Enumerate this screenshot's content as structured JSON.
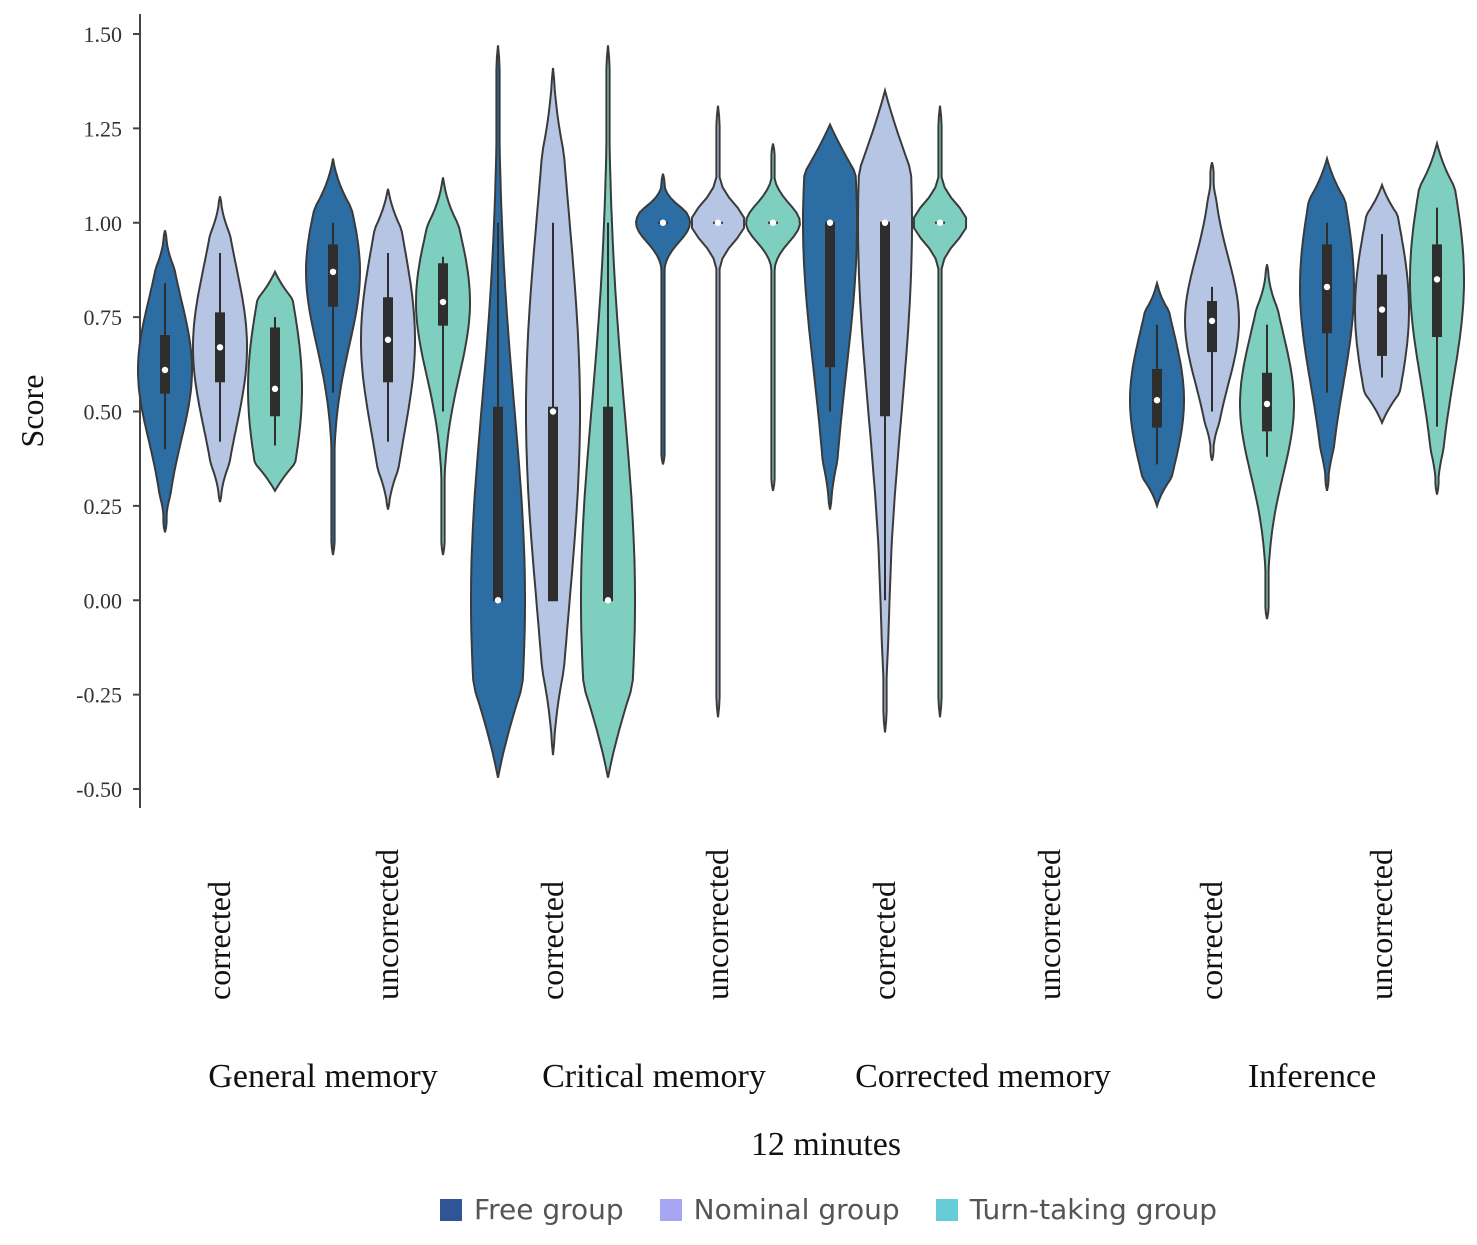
{
  "chart_data": {
    "type": "violin",
    "xlabel": "12 minutes",
    "ylabel": "Score",
    "ylim": [
      -0.5,
      1.5
    ],
    "yticks": [
      "1.50",
      "1.25",
      "1.00",
      "0.75",
      "0.50",
      "0.25",
      "0.00",
      "-0.25",
      "-0.50"
    ],
    "ytick_values": [
      1.5,
      1.25,
      1.0,
      0.75,
      0.5,
      0.25,
      0.0,
      -0.25,
      -0.5
    ],
    "groups": [
      "General memory",
      "Critical memory",
      "Corrected memory",
      "Inference"
    ],
    "subcategories": [
      "corrected",
      "uncorrected"
    ],
    "series": [
      {
        "name": "Free group",
        "color": "#2c6ea3"
      },
      {
        "name": "Nominal group",
        "color": "#b5c5e3"
      },
      {
        "name": "Turn-taking group",
        "color": "#7fcfc0"
      }
    ],
    "violins": [
      {
        "group": "General memory",
        "condition": "corrected",
        "series": "Free group",
        "min": 0.18,
        "max": 0.98,
        "q1": 0.55,
        "median": 0.61,
        "q3": 0.7,
        "whisker_low": 0.4,
        "whisker_high": 0.84
      },
      {
        "group": "General memory",
        "condition": "corrected",
        "series": "Nominal group",
        "min": 0.26,
        "max": 1.07,
        "q1": 0.58,
        "median": 0.67,
        "q3": 0.76,
        "whisker_low": 0.42,
        "whisker_high": 0.92
      },
      {
        "group": "General memory",
        "condition": "corrected",
        "series": "Turn-taking group",
        "min": 0.29,
        "max": 0.87,
        "q1": 0.49,
        "median": 0.56,
        "q3": 0.72,
        "whisker_low": 0.41,
        "whisker_high": 0.75
      },
      {
        "group": "General memory",
        "condition": "uncorrected",
        "series": "Free group",
        "min": 0.12,
        "max": 1.17,
        "q1": 0.78,
        "median": 0.87,
        "q3": 0.94,
        "whisker_low": 0.55,
        "whisker_high": 1.0
      },
      {
        "group": "General memory",
        "condition": "uncorrected",
        "series": "Nominal group",
        "min": 0.24,
        "max": 1.09,
        "q1": 0.58,
        "median": 0.69,
        "q3": 0.8,
        "whisker_low": 0.42,
        "whisker_high": 0.92
      },
      {
        "group": "General memory",
        "condition": "uncorrected",
        "series": "Turn-taking group",
        "min": 0.12,
        "max": 1.12,
        "q1": 0.73,
        "median": 0.79,
        "q3": 0.89,
        "whisker_low": 0.5,
        "whisker_high": 0.91
      },
      {
        "group": "Critical memory",
        "condition": "corrected",
        "series": "Free group",
        "min": -0.47,
        "max": 1.47,
        "q1": 0.0,
        "median": 0.0,
        "q3": 0.51,
        "whisker_low": 0.0,
        "whisker_high": 1.0
      },
      {
        "group": "Critical memory",
        "condition": "corrected",
        "series": "Nominal group",
        "min": -0.41,
        "max": 1.41,
        "q1": 0.0,
        "median": 0.5,
        "q3": 0.51,
        "whisker_low": 0.0,
        "whisker_high": 1.0
      },
      {
        "group": "Critical memory",
        "condition": "corrected",
        "series": "Turn-taking group",
        "min": -0.47,
        "max": 1.47,
        "q1": 0.0,
        "median": 0.0,
        "q3": 0.51,
        "whisker_low": 0.0,
        "whisker_high": 1.0
      },
      {
        "group": "Critical memory",
        "condition": "uncorrected",
        "series": "Free group",
        "min": 0.36,
        "max": 1.13,
        "q1": 1.0,
        "median": 1.0,
        "q3": 1.0,
        "whisker_low": 1.0,
        "whisker_high": 1.0
      },
      {
        "group": "Critical memory",
        "condition": "uncorrected",
        "series": "Nominal group",
        "min": -0.31,
        "max": 1.31,
        "q1": 1.0,
        "median": 1.0,
        "q3": 1.0,
        "whisker_low": 1.0,
        "whisker_high": 1.0
      },
      {
        "group": "Critical memory",
        "condition": "uncorrected",
        "series": "Turn-taking group",
        "min": 0.29,
        "max": 1.21,
        "q1": 1.0,
        "median": 1.0,
        "q3": 1.0,
        "whisker_low": 1.0,
        "whisker_high": 1.0
      },
      {
        "group": "Corrected memory",
        "condition": "corrected",
        "series": "Free group",
        "min": 0.24,
        "max": 1.26,
        "q1": 0.62,
        "median": 1.0,
        "q3": 1.0,
        "whisker_low": 0.5,
        "whisker_high": 1.0
      },
      {
        "group": "Corrected memory",
        "condition": "corrected",
        "series": "Nominal group",
        "min": -0.35,
        "max": 1.35,
        "q1": 0.49,
        "median": 1.0,
        "q3": 1.0,
        "whisker_low": 0.0,
        "whisker_high": 1.0
      },
      {
        "group": "Corrected memory",
        "condition": "corrected",
        "series": "Turn-taking group",
        "min": -0.31,
        "max": 1.31,
        "q1": 1.0,
        "median": 1.0,
        "q3": 1.0,
        "whisker_low": 1.0,
        "whisker_high": 1.0
      },
      {
        "group": "Inference",
        "condition": "corrected",
        "series": "Free group",
        "min": 0.25,
        "max": 0.84,
        "q1": 0.46,
        "median": 0.53,
        "q3": 0.61,
        "whisker_low": 0.36,
        "whisker_high": 0.73
      },
      {
        "group": "Inference",
        "condition": "corrected",
        "series": "Nominal group",
        "min": 0.37,
        "max": 1.16,
        "q1": 0.66,
        "median": 0.74,
        "q3": 0.79,
        "whisker_low": 0.5,
        "whisker_high": 0.83
      },
      {
        "group": "Inference",
        "condition": "corrected",
        "series": "Turn-taking group",
        "min": -0.05,
        "max": 0.89,
        "q1": 0.45,
        "median": 0.52,
        "q3": 0.6,
        "whisker_low": 0.38,
        "whisker_high": 0.73
      },
      {
        "group": "Inference",
        "condition": "uncorrected",
        "series": "Free group",
        "min": 0.29,
        "max": 1.17,
        "q1": 0.71,
        "median": 0.83,
        "q3": 0.94,
        "whisker_low": 0.55,
        "whisker_high": 1.0
      },
      {
        "group": "Inference",
        "condition": "uncorrected",
        "series": "Nominal group",
        "min": 0.47,
        "max": 1.1,
        "q1": 0.65,
        "median": 0.77,
        "q3": 0.86,
        "whisker_low": 0.59,
        "whisker_high": 0.97
      },
      {
        "group": "Inference",
        "condition": "uncorrected",
        "series": "Turn-taking group",
        "min": 0.28,
        "max": 1.21,
        "q1": 0.7,
        "median": 0.85,
        "q3": 0.94,
        "whisker_low": 0.46,
        "whisker_high": 1.04
      }
    ],
    "x_tick_labels": [
      {
        "group": "General memory",
        "condition": "corrected"
      },
      {
        "group": "General memory",
        "condition": "uncorrected"
      },
      {
        "group": "Critical memory",
        "condition": "corrected"
      },
      {
        "group": "Critical memory",
        "condition": "uncorrected"
      },
      {
        "group": "Corrected memory",
        "condition": "corrected"
      },
      {
        "group": "Corrected memory",
        "condition": "uncorrected"
      },
      {
        "group": "Inference",
        "condition": "corrected"
      },
      {
        "group": "Inference",
        "condition": "uncorrected"
      }
    ],
    "legend_position": "bottom"
  }
}
